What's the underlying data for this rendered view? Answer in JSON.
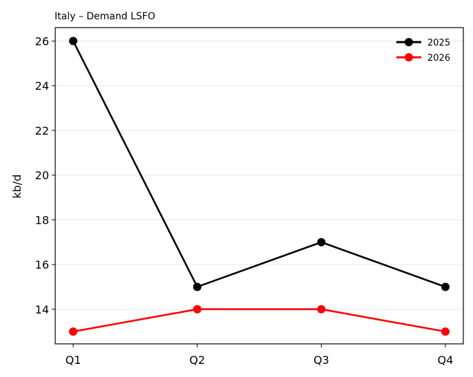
{
  "chart_data": {
    "type": "line",
    "title": "Italy – Demand LSFO",
    "xlabel": "",
    "ylabel": "kb/d",
    "categories": [
      "Q1",
      "Q2",
      "Q3",
      "Q4"
    ],
    "series": [
      {
        "name": "2025",
        "values": [
          26,
          15,
          17,
          15
        ],
        "color": "#000000"
      },
      {
        "name": "2026",
        "values": [
          13,
          14,
          14,
          13
        ],
        "color": "#ff0000"
      }
    ],
    "ylim": [
      12.45,
      26.6
    ],
    "yticks": [
      14,
      16,
      18,
      20,
      22,
      24,
      26
    ],
    "grid": "horizontal",
    "legend_position": "top-right"
  }
}
